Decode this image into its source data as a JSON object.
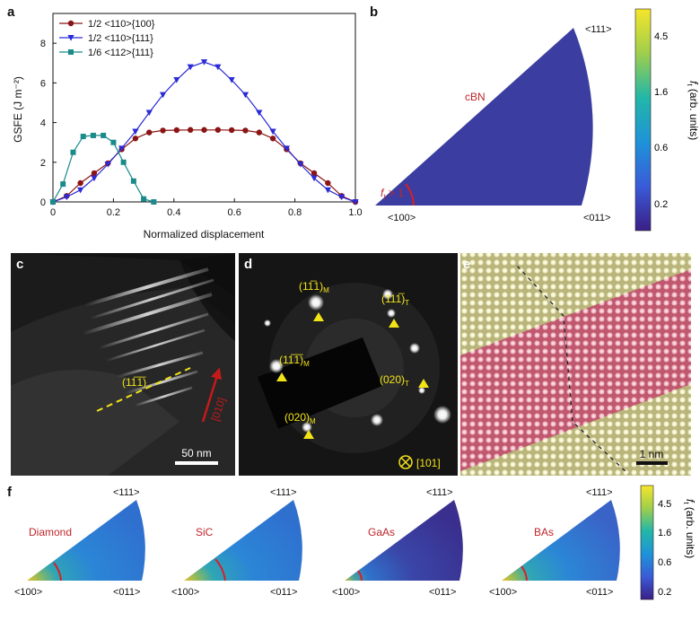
{
  "panel_labels": {
    "a": "a",
    "b": "b",
    "c": "c",
    "d": "d",
    "e": "e",
    "f": "f"
  },
  "chart_data": {
    "type": "line",
    "title": "",
    "xlabel": "Normalized displacement",
    "ylabel": "GSFE (J m⁻²)",
    "xlim": [
      0,
      1.0
    ],
    "ylim": [
      0,
      9.5
    ],
    "xticks": [
      "0",
      "0.2",
      "0.4",
      "0.6",
      "0.8",
      "1.0"
    ],
    "yticks": [
      "0",
      "2",
      "4",
      "6",
      "8"
    ],
    "legend_position": "top-left",
    "series": [
      {
        "name": "1/2 <110>{100}",
        "color": "#8b1414",
        "marker": "circle",
        "x": [
          0,
          0.0455,
          0.0909,
          0.1364,
          0.1818,
          0.2273,
          0.2727,
          0.3182,
          0.3636,
          0.4091,
          0.4545,
          0.5,
          0.5455,
          0.5909,
          0.6364,
          0.6818,
          0.7273,
          0.7727,
          0.8182,
          0.8636,
          0.9091,
          0.9545,
          1.0
        ],
        "y": [
          0,
          0.3,
          0.95,
          1.45,
          1.95,
          2.65,
          3.2,
          3.5,
          3.6,
          3.62,
          3.63,
          3.63,
          3.63,
          3.62,
          3.6,
          3.5,
          3.2,
          2.65,
          1.95,
          1.45,
          0.95,
          0.3,
          0
        ]
      },
      {
        "name": "1/2 <110>{111}",
        "color": "#2a2ad6",
        "marker": "triangle-down",
        "x": [
          0,
          0.0455,
          0.0909,
          0.1364,
          0.1818,
          0.2273,
          0.2727,
          0.3182,
          0.3636,
          0.4091,
          0.4545,
          0.5,
          0.5455,
          0.5909,
          0.6364,
          0.6818,
          0.7273,
          0.7727,
          0.8182,
          0.8636,
          0.9091,
          0.9545,
          1.0
        ],
        "y": [
          0,
          0.25,
          0.6,
          1.2,
          1.9,
          2.7,
          3.55,
          4.5,
          5.4,
          6.15,
          6.8,
          7.05,
          6.8,
          6.15,
          5.4,
          4.5,
          3.55,
          2.7,
          1.9,
          1.2,
          0.6,
          0.25,
          0
        ]
      },
      {
        "name": "1/6 <112>{111}",
        "color": "#1a8a8a",
        "marker": "square",
        "x": [
          0,
          0.0333,
          0.0667,
          0.1,
          0.1333,
          0.1667,
          0.2,
          0.2333,
          0.2667,
          0.3,
          0.3333
        ],
        "y": [
          0,
          0.9,
          2.5,
          3.3,
          3.35,
          3.35,
          3.0,
          2.0,
          1.05,
          0.15,
          0
        ]
      }
    ]
  },
  "panel_b": {
    "material": "cBN",
    "pole_111": "<111>",
    "pole_100": "<100>",
    "pole_011": "<011>",
    "ft_label": "f",
    "ft_sub": "t",
    "ft_rest": " > 1"
  },
  "colorbar": {
    "ticks": [
      "4.5",
      "1.6",
      "0.6",
      "0.2"
    ],
    "label": "f",
    "label_sub": "t",
    "label_rest": " (arb. units)"
  },
  "panel_c": {
    "plane": "(11̅1̅)",
    "direction": "[010]",
    "scale": "50 nm"
  },
  "panel_d": {
    "spots": [
      {
        "text": "(11̅1)",
        "sub": "M"
      },
      {
        "text": "(111̅)",
        "sub": "T"
      },
      {
        "text": "(11̅1̅)",
        "sub": "M"
      },
      {
        "text": "(020)",
        "sub": "T"
      },
      {
        "text": "(020)",
        "sub": "M"
      }
    ],
    "zone": "[101]"
  },
  "panel_e": {
    "scale": "1 nm"
  },
  "panel_f": {
    "maps": [
      {
        "material": "Diamond",
        "pole_111": "<111>",
        "pole_100": "<100>",
        "pole_011": "<011>"
      },
      {
        "material": "SiC",
        "pole_111": "<111>",
        "pole_100": "<100>",
        "pole_011": "<011>"
      },
      {
        "material": "GaAs",
        "pole_111": "<111>",
        "pole_100": "<100>",
        "pole_011": "<011>"
      },
      {
        "material": "BAs",
        "pole_111": "<111>",
        "pole_100": "<100>",
        "pole_011": "<011>"
      }
    ]
  },
  "colors": {
    "accent_red": "#c0262b",
    "annot_yellow": "#f2e317",
    "map_blue": "#2a6fd0"
  }
}
